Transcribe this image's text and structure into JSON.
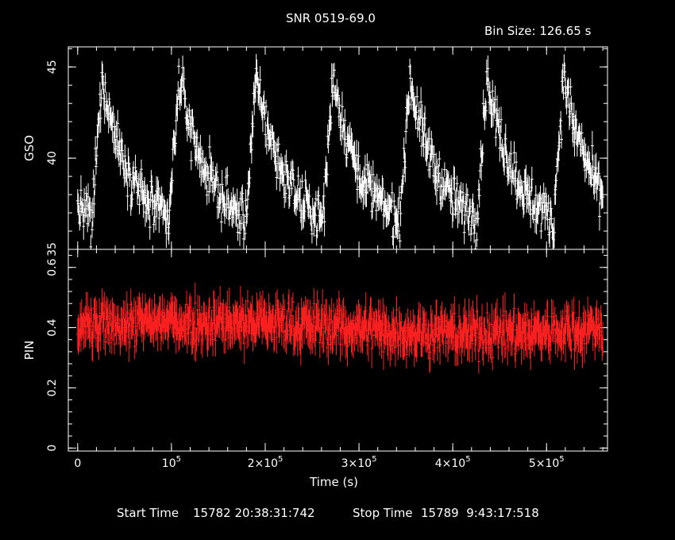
{
  "chart_data": {
    "type": "scatter",
    "title": "SNR 0519-69.0",
    "subtitle": "Bin Size: 126.65 s",
    "xlabel": "Time (s)",
    "footer": {
      "start_label": "Start Time",
      "start_value": "15782 20:38:31:742",
      "stop_label": "Stop Time",
      "stop_value": "15789  9:43:17:518"
    },
    "xlim": [
      -10000,
      565000
    ],
    "x_ticks": [
      {
        "value": 0,
        "mantissa": "0",
        "exp": ""
      },
      {
        "value": 100000,
        "mantissa": "10",
        "exp": "5"
      },
      {
        "value": 200000,
        "mantissa": "2×10",
        "exp": "5"
      },
      {
        "value": 300000,
        "mantissa": "3×10",
        "exp": "5"
      },
      {
        "value": 400000,
        "mantissa": "4×10",
        "exp": "5"
      },
      {
        "value": 500000,
        "mantissa": "5×10",
        "exp": "5"
      }
    ],
    "panels": [
      {
        "name": "GSO",
        "ylabel": "GSO",
        "ylim": [
          35,
          46.1
        ],
        "y_ticks": [
          35,
          40,
          45
        ],
        "color": "#ffffff",
        "period": 82000,
        "phase": 14000,
        "base": 35.8,
        "amp": 8.6,
        "noise": 0.85,
        "err": 0.6
      },
      {
        "name": "PIN",
        "ylabel": "PIN",
        "ylim": [
          -0.01,
          0.66
        ],
        "y_ticks": [
          0,
          0.2,
          0.4,
          0.6
        ],
        "color": "#ff2020",
        "mean": 0.4,
        "noise": 0.05,
        "err": 0.05
      }
    ]
  }
}
